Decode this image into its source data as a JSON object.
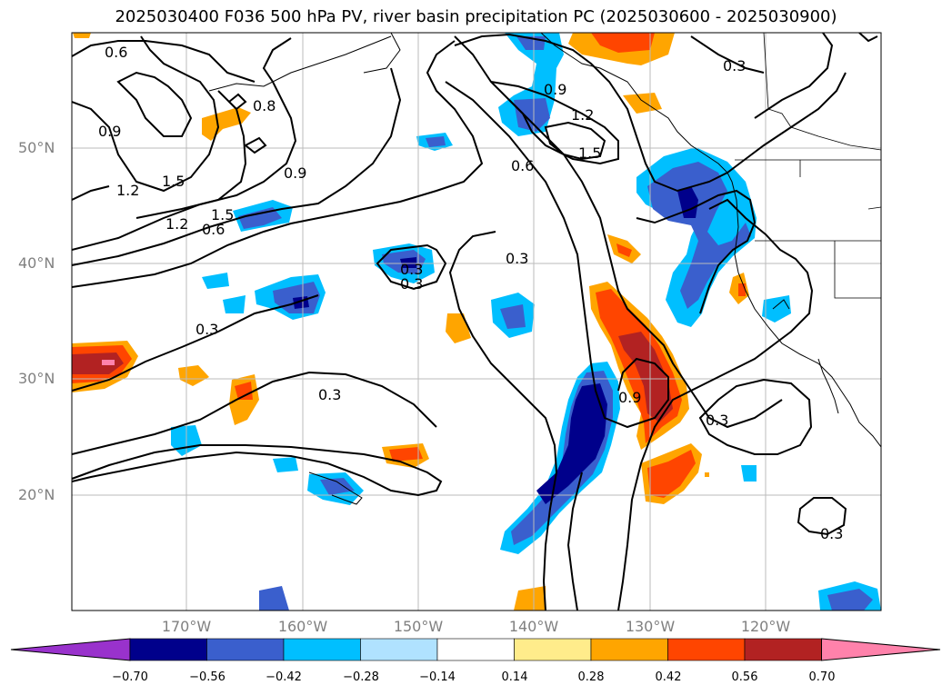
{
  "title": "2025030400 F036 500 hPa PV, river basin precipitation PC (2025030600 - 2025030900)",
  "lat_labels": [
    "50°N",
    "40°N",
    "30°N",
    "20°N"
  ],
  "lon_labels": [
    "170°W",
    "160°W",
    "150°W",
    "140°W",
    "130°W",
    "120°W"
  ],
  "contour_labels": [
    "0.6",
    "0.9",
    "1.2",
    "1.5",
    "0.8",
    "1.2",
    "1.5",
    "0.9",
    "0.6",
    "0.3",
    "0.9",
    "1.2",
    "1.5",
    "0.6",
    "0.3",
    "0.3",
    "0.3",
    "0.3",
    "0.9",
    "0.3",
    "0.3",
    "0.3"
  ],
  "colorbar": {
    "tick_labels": [
      "−0.70",
      "−0.56",
      "−0.42",
      "−0.28",
      "−0.14",
      "0.14",
      "0.28",
      "0.42",
      "0.56",
      "0.70"
    ],
    "colors": [
      "#9932cc",
      "#00008b",
      "#3a5fcd",
      "#00bfff",
      "#b0e2ff",
      "#ffffff",
      "#ffec8b",
      "#ffa500",
      "#ff4500",
      "#b22222",
      "#ff82ab"
    ]
  }
}
